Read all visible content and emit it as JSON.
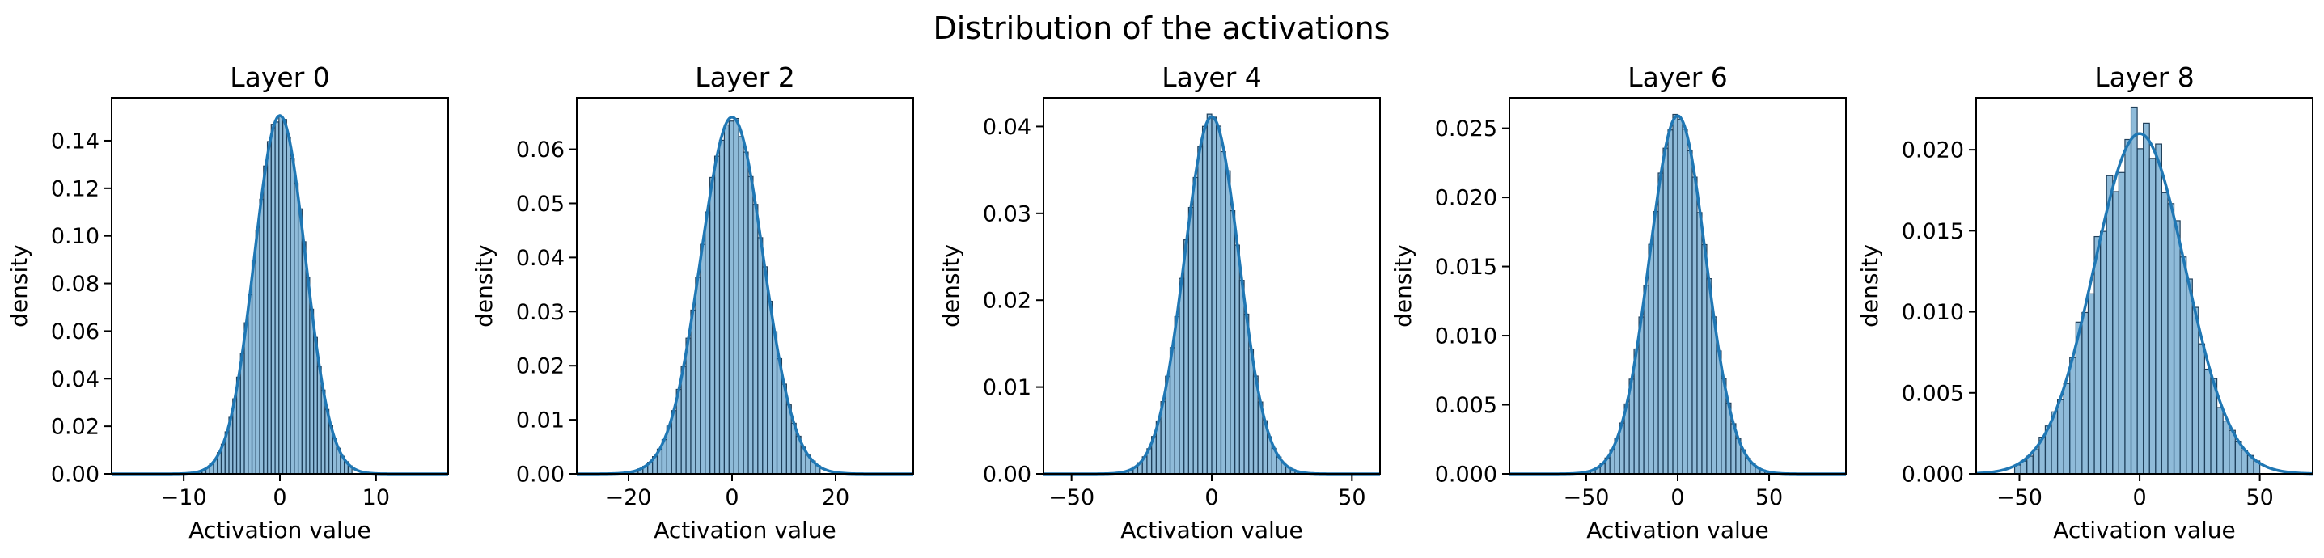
{
  "figure_title": "Distribution of the activations",
  "colors": {
    "line": "#1f77b4",
    "bar_fill": "#1f77b4",
    "bar_alpha": 0.5
  },
  "chart_data": [
    {
      "type": "histogram+kde",
      "title": "Layer 0",
      "xlabel": "Activation value",
      "ylabel": "density",
      "xlim": [
        -17.5,
        17.5
      ],
      "ylim": [
        0,
        0.158
      ],
      "xticks": [
        -10,
        0,
        10
      ],
      "xtick_labels": [
        "−10",
        "0",
        "10"
      ],
      "yticks": [
        0,
        0.02,
        0.04,
        0.06,
        0.08,
        0.1,
        0.12,
        0.14
      ],
      "ytick_labels": [
        "0.00",
        "0.02",
        "0.04",
        "0.06",
        "0.08",
        "0.10",
        "0.12",
        "0.14"
      ],
      "kde": {
        "mean": 0,
        "std": 2.65
      },
      "hist_range": [
        -8.5,
        7.5
      ],
      "bins": 40,
      "noise": 0.015
    },
    {
      "type": "histogram+kde",
      "title": "Layer 2",
      "xlabel": "Activation value",
      "ylabel": "density",
      "xlim": [
        -30,
        35
      ],
      "ylim": [
        0,
        0.0695
      ],
      "xticks": [
        -20,
        0,
        20
      ],
      "xtick_labels": [
        "−20",
        "0",
        "20"
      ],
      "yticks": [
        0,
        0.01,
        0.02,
        0.03,
        0.04,
        0.05,
        0.06
      ],
      "ytick_labels": [
        "0.00",
        "0.01",
        "0.02",
        "0.03",
        "0.04",
        "0.05",
        "0.06"
      ],
      "kde": {
        "mean": 0,
        "std": 6.05
      },
      "hist_range": [
        -20,
        17
      ],
      "bins": 40,
      "noise": 0.015
    },
    {
      "type": "histogram+kde",
      "title": "Layer 4",
      "xlabel": "Activation value",
      "ylabel": "density",
      "xlim": [
        -60,
        60
      ],
      "ylim": [
        0,
        0.0433
      ],
      "xticks": [
        -50,
        0,
        50
      ],
      "xtick_labels": [
        "−50",
        "0",
        "50"
      ],
      "yticks": [
        0,
        0.01,
        0.02,
        0.03,
        0.04
      ],
      "ytick_labels": [
        "0.00",
        "0.01",
        "0.02",
        "0.03",
        "0.04"
      ],
      "kde": {
        "mean": 0,
        "std": 9.7
      },
      "hist_range": [
        -33,
        33
      ],
      "bins": 40,
      "noise": 0.015
    },
    {
      "type": "histogram+kde",
      "title": "Layer 6",
      "xlabel": "Activation value",
      "ylabel": "density",
      "xlim": [
        -92,
        92
      ],
      "ylim": [
        0,
        0.0272
      ],
      "xticks": [
        -50,
        0,
        50
      ],
      "xtick_labels": [
        "−50",
        "0",
        "50"
      ],
      "yticks": [
        0,
        0.005,
        0.01,
        0.015,
        0.02,
        0.025
      ],
      "ytick_labels": [
        "0.000",
        "0.005",
        "0.010",
        "0.015",
        "0.020",
        "0.025"
      ],
      "kde": {
        "mean": 0,
        "std": 15.4
      },
      "hist_range": [
        -53,
        53
      ],
      "bins": 40,
      "noise": 0.02
    },
    {
      "type": "histogram+kde",
      "title": "Layer 8",
      "xlabel": "Activation value",
      "ylabel": "density",
      "xlim": [
        -68,
        72
      ],
      "ylim": [
        0,
        0.0232
      ],
      "xticks": [
        -50,
        0,
        50
      ],
      "xtick_labels": [
        "−50",
        "0",
        "50"
      ],
      "yticks": [
        0,
        0.005,
        0.01,
        0.015,
        0.02
      ],
      "ytick_labels": [
        "0.000",
        "0.005",
        "0.010",
        "0.015",
        "0.020"
      ],
      "kde": {
        "mean": 0,
        "std": 19.0
      },
      "hist_range": [
        -52,
        50
      ],
      "bins": 40,
      "noise": 0.09
    }
  ]
}
